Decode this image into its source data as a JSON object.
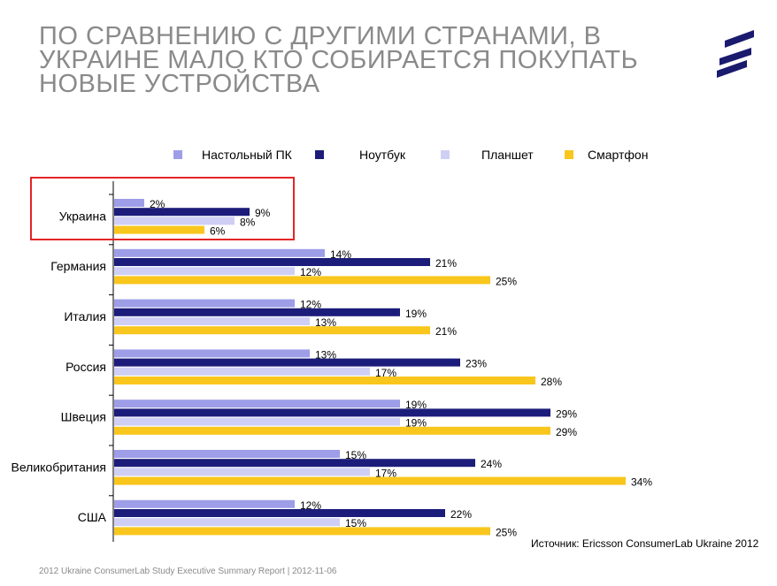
{
  "title_lines": [
    "ПО СРАВНЕНИЮ С ДРУГИМИ СТРАНАМИ, В",
    "УКРАИНЕ МАЛО КТО СОБИРАЕТСЯ ПОКУПАТЬ",
    "НОВЫЕ УСТРОЙСТВА"
  ],
  "logo_icon": "ericsson-logo-icon",
  "highlight_color": "#e32528",
  "chart_data": {
    "type": "bar",
    "orientation": "horizontal",
    "categories": [
      "Украина",
      "Германия",
      "Италия",
      "Россия",
      "Швеция",
      "Великобритания",
      "США"
    ],
    "series": [
      {
        "name": "Настольный ПК",
        "color": "#9d9de8",
        "values": [
          2,
          14,
          12,
          13,
          19,
          15,
          12
        ]
      },
      {
        "name": "Ноутбук",
        "color": "#1c1c7a",
        "values": [
          9,
          21,
          19,
          23,
          29,
          24,
          22
        ]
      },
      {
        "name": "Планшет",
        "color": "#cfcff5",
        "values": [
          8,
          12,
          13,
          17,
          19,
          17,
          15
        ]
      },
      {
        "name": "Смартфон",
        "color": "#f8c61c",
        "values": [
          6,
          25,
          21,
          28,
          29,
          34,
          25
        ]
      }
    ],
    "value_suffix": "%",
    "legend_position": "top",
    "grid": false,
    "highlighted_category": "Украина"
  },
  "source": "Источник: Ericsson ConsumerLab Ukraine 2012",
  "footer": "2012 Ukraine ConsumerLab Study Executive Summary Report  |  2012-11-06"
}
